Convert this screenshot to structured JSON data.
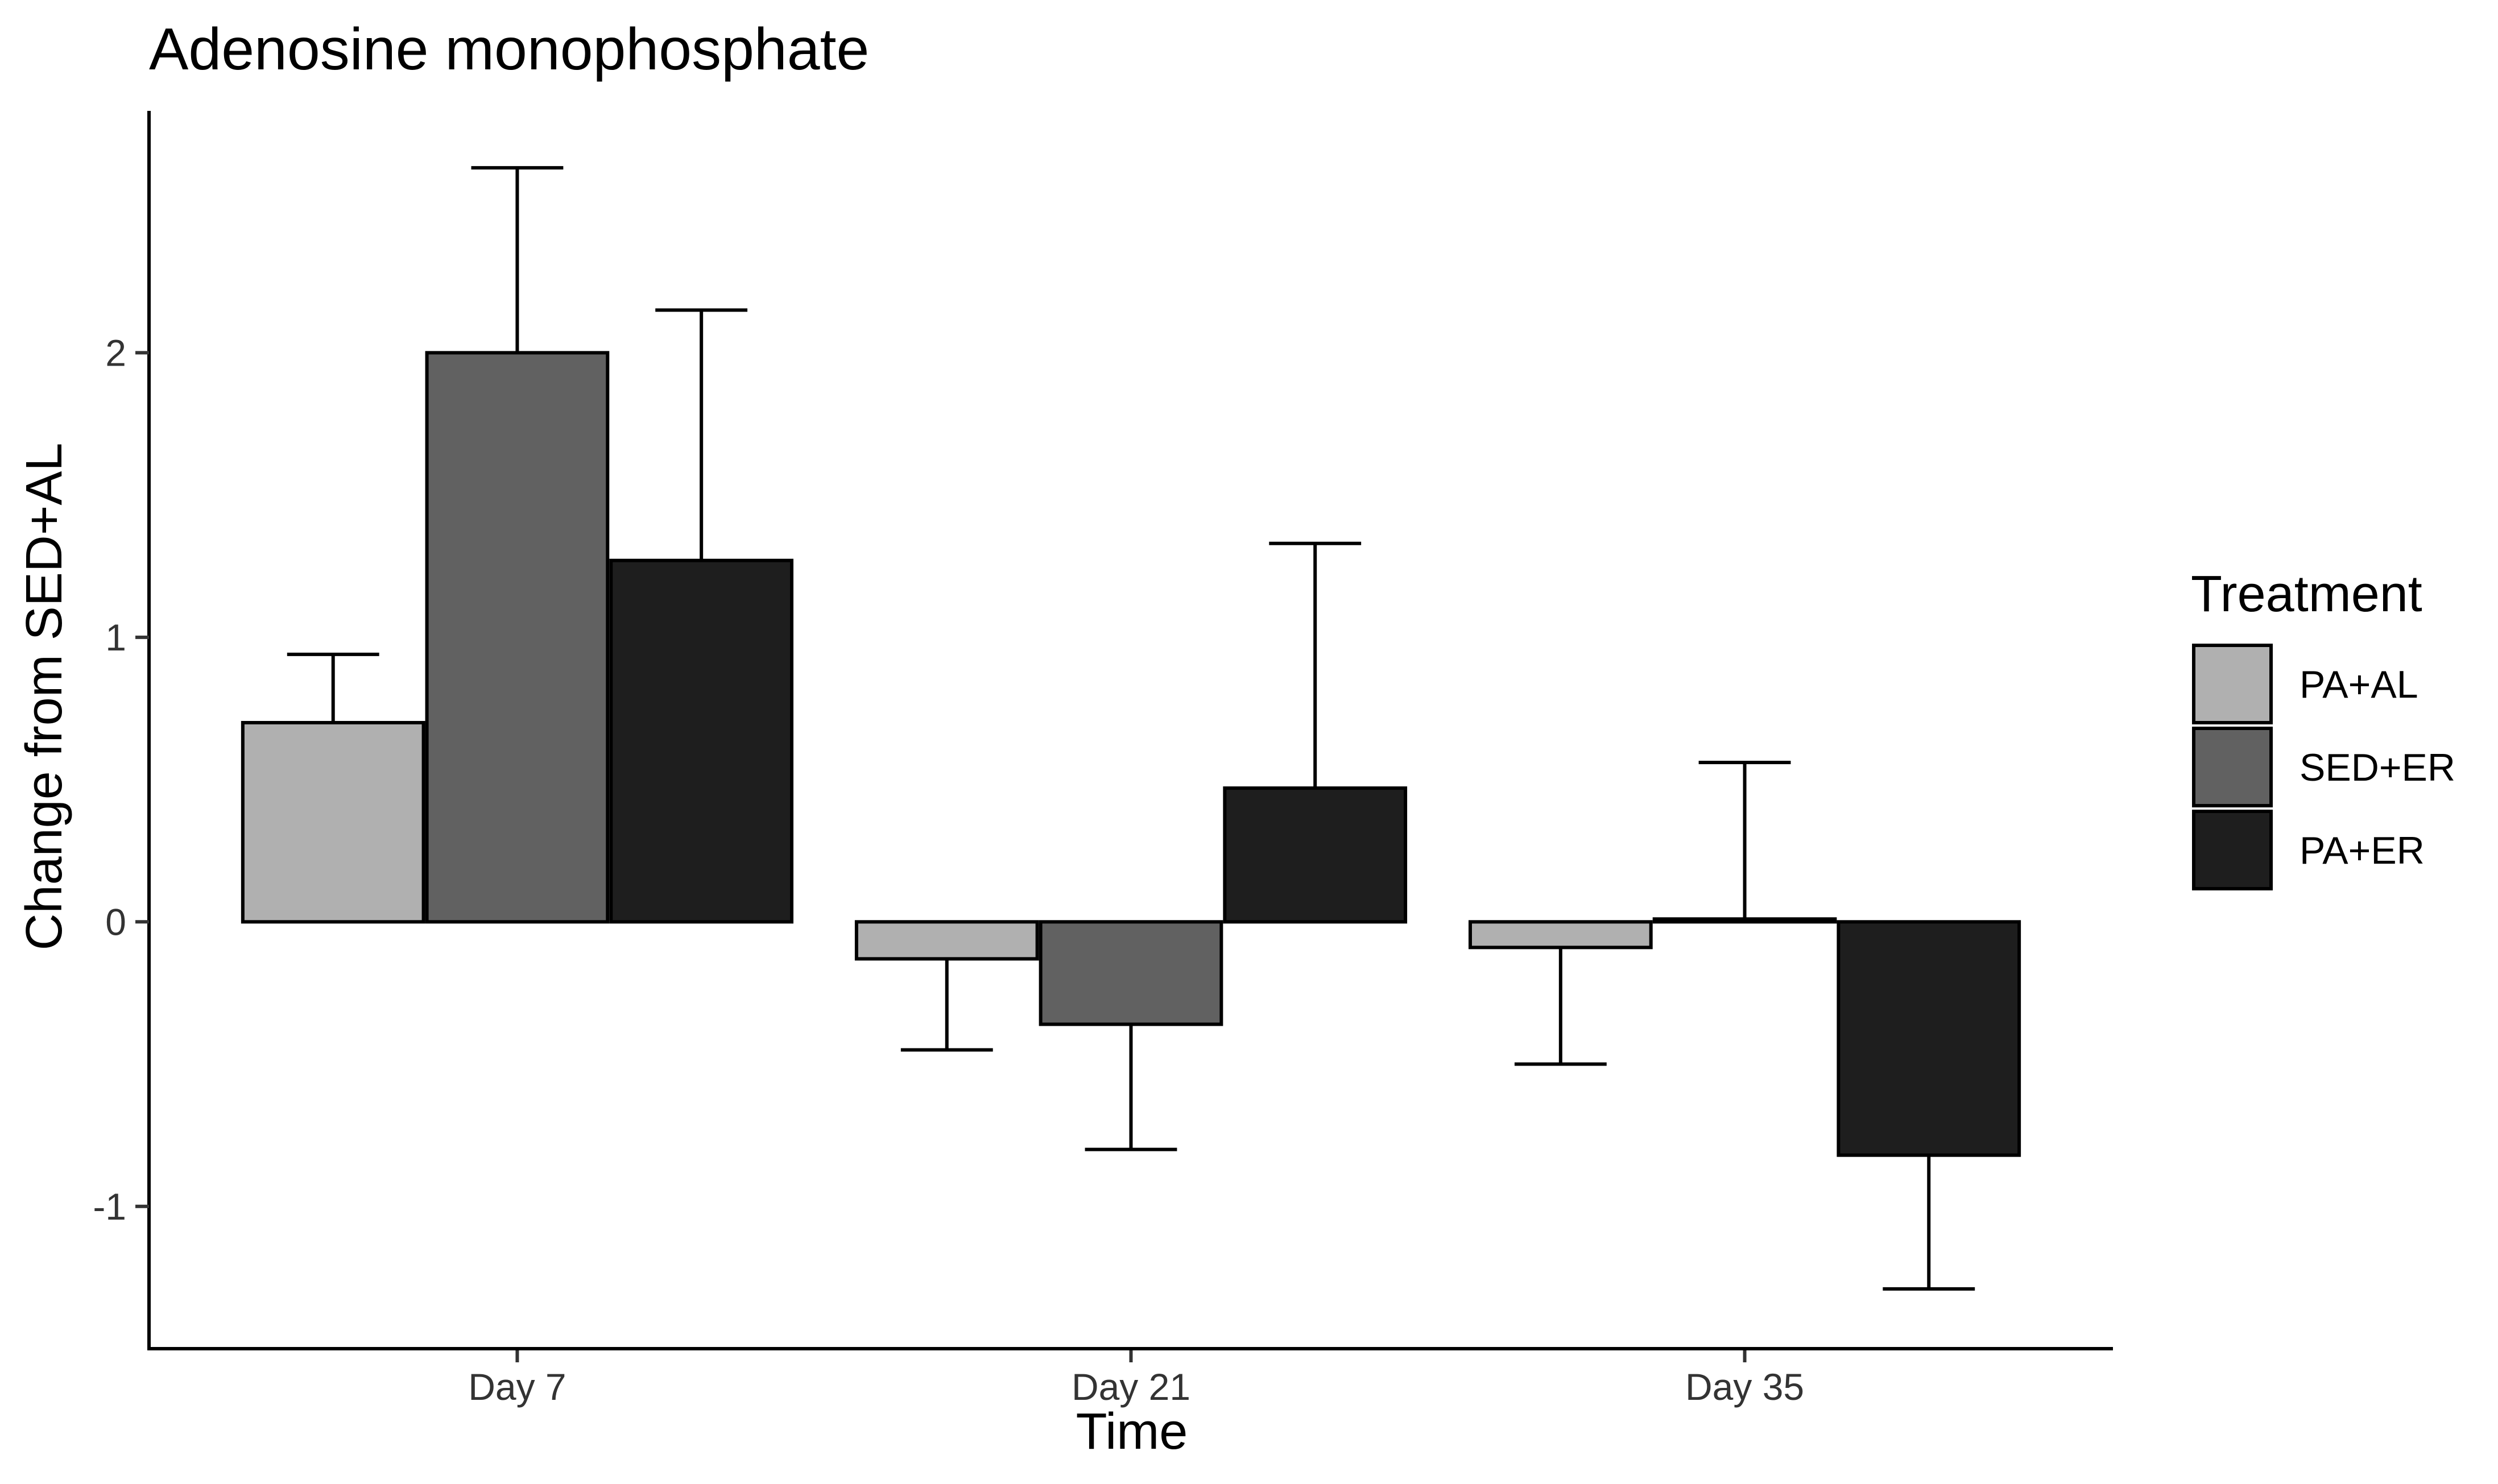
{
  "chart_data": {
    "type": "bar",
    "title": "Adenosine monophosphate",
    "xlabel": "Time",
    "ylabel": "Change from SED+AL",
    "categories": [
      "Day 7",
      "Day 21",
      "Day 35"
    ],
    "series": [
      {
        "name": "PA+AL",
        "color": "#b0b0b0",
        "values": [
          0.7,
          -0.13,
          -0.09
        ],
        "error": [
          0.24,
          0.32,
          0.41
        ]
      },
      {
        "name": "SED+ER",
        "color": "#616161",
        "values": [
          2.0,
          -0.36,
          0.01
        ],
        "error": [
          0.65,
          0.44,
          0.55
        ]
      },
      {
        "name": "PA+ER",
        "color": "#1e1e1e",
        "values": [
          1.27,
          0.47,
          -0.82
        ],
        "error": [
          0.88,
          0.86,
          0.47
        ]
      }
    ],
    "ylim": [
      -1.5,
      2.85
    ],
    "yticks": [
      -1,
      0,
      1,
      2
    ],
    "ytick_labels": [
      "-1",
      "0",
      "1",
      "2"
    ],
    "grid": false,
    "legend": {
      "title": "Treatment",
      "position": "right"
    }
  }
}
